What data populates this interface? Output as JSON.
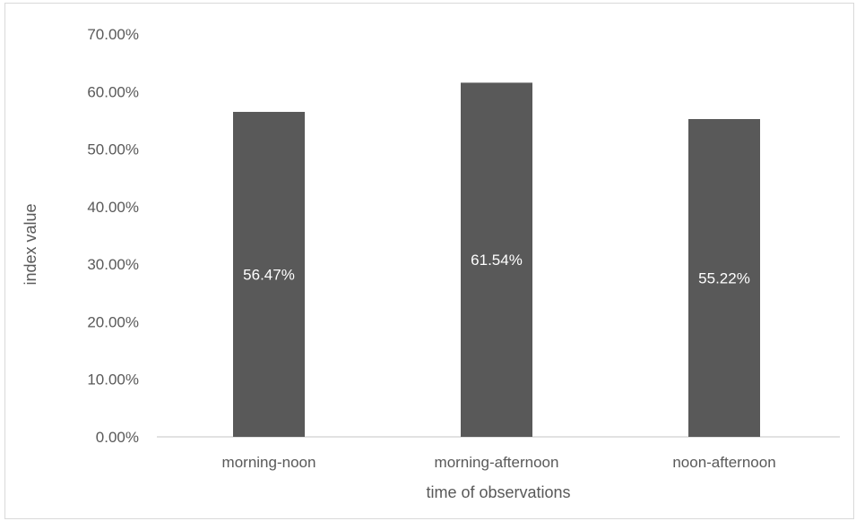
{
  "chart_data": {
    "type": "bar",
    "title": "",
    "xlabel": "time of observations",
    "ylabel": "index value",
    "categories": [
      "morning-noon",
      "morning-afternoon",
      "noon-afternoon"
    ],
    "values": [
      56.47,
      61.54,
      55.22
    ],
    "data_labels": [
      "56.47%",
      "61.54%",
      "55.22%"
    ],
    "ylim": [
      0,
      70
    ],
    "yticks": [
      0,
      10,
      20,
      30,
      40,
      50,
      60,
      70
    ],
    "ytick_labels": [
      "0.00%",
      "10.00%",
      "20.00%",
      "30.00%",
      "40.00%",
      "50.00%",
      "60.00%",
      "70.00%"
    ],
    "grid": false,
    "legend": "none",
    "bar_color": "#595959",
    "axis_color": "#d9d9d9",
    "text_color": "#595959"
  }
}
